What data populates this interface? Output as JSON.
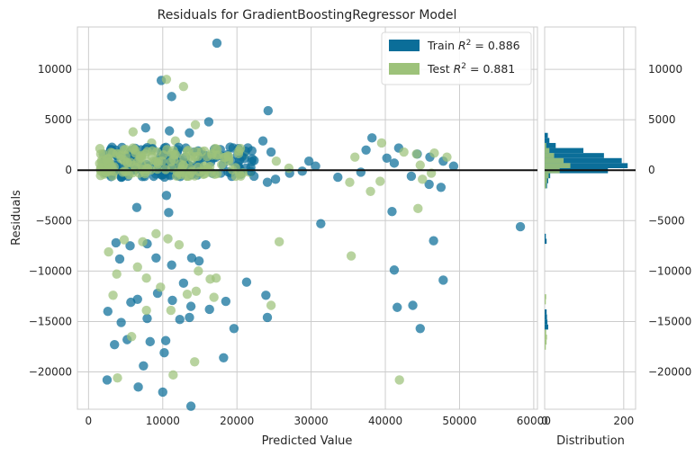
{
  "chart_data": {
    "type": "scatter",
    "title": "Residuals for GradientBoostingRegressor Model",
    "xlabel": "Predicted Value",
    "ylabel": "Residuals",
    "xlim": [
      -1500,
      60500
    ],
    "ylim": [
      -23700,
      14200
    ],
    "x_ticks": [
      0,
      10000,
      20000,
      30000,
      40000,
      50000,
      60000
    ],
    "y_ticks": [
      10000,
      5000,
      0,
      -5000,
      -10000,
      -15000,
      -20000
    ],
    "grid": true,
    "zero_line": 0,
    "legend": {
      "position": "top-right",
      "entries": [
        {
          "name": "Train R^2 = 0.886",
          "prefix": "Train ",
          "r2": "0.886",
          "color": "#0b6e99"
        },
        {
          "name": "Test R^2 = 0.881",
          "prefix": "Test ",
          "r2": "0.881",
          "color": "#9dc27a"
        }
      ]
    },
    "series": [
      {
        "name": "Train",
        "color": "#0b6e99",
        "points": [
          [
            17300,
            12600
          ],
          [
            9800,
            8900
          ],
          [
            11200,
            7300
          ],
          [
            24200,
            5900
          ],
          [
            16200,
            4800
          ],
          [
            7700,
            4200
          ],
          [
            10900,
            3900
          ],
          [
            13600,
            3700
          ],
          [
            24600,
            1800
          ],
          [
            29700,
            900
          ],
          [
            30600,
            400
          ],
          [
            23500,
            2900
          ],
          [
            38200,
            3200
          ],
          [
            44300,
            1600
          ],
          [
            46000,
            1300
          ],
          [
            47800,
            900
          ],
          [
            49200,
            400
          ],
          [
            41800,
            2200
          ],
          [
            37400,
            2000
          ],
          [
            40200,
            1200
          ],
          [
            41200,
            700
          ],
          [
            43500,
            -600
          ],
          [
            45900,
            -1400
          ],
          [
            47500,
            -1700
          ],
          [
            36700,
            -200
          ],
          [
            33600,
            -700
          ],
          [
            28800,
            -100
          ],
          [
            27100,
            -300
          ],
          [
            25200,
            -900
          ],
          [
            22300,
            -600
          ],
          [
            21200,
            200
          ],
          [
            24100,
            -1200
          ],
          [
            19300,
            900
          ],
          [
            40900,
            -4100
          ],
          [
            31300,
            -5300
          ],
          [
            58200,
            -5600
          ],
          [
            46500,
            -7000
          ],
          [
            43700,
            -13400
          ],
          [
            41200,
            -9900
          ],
          [
            41600,
            -13600
          ],
          [
            44700,
            -15700
          ],
          [
            47800,
            -10900
          ],
          [
            23900,
            -12400
          ],
          [
            24100,
            -14600
          ],
          [
            21300,
            -11100
          ],
          [
            18500,
            -13000
          ],
          [
            18200,
            -18600
          ],
          [
            19600,
            -15700
          ],
          [
            16300,
            -13800
          ],
          [
            13600,
            -14600
          ],
          [
            10400,
            -16900
          ],
          [
            10200,
            -18100
          ],
          [
            10000,
            -22000
          ],
          [
            6700,
            -21500
          ],
          [
            2500,
            -20800
          ],
          [
            7400,
            -19400
          ],
          [
            8300,
            -17000
          ],
          [
            5200,
            -16800
          ],
          [
            3500,
            -17300
          ],
          [
            4400,
            -15100
          ],
          [
            5700,
            -13100
          ],
          [
            6600,
            -12800
          ],
          [
            7900,
            -14700
          ],
          [
            9300,
            -12200
          ],
          [
            11300,
            -12900
          ],
          [
            12300,
            -14800
          ],
          [
            13800,
            -13500
          ],
          [
            12800,
            -11200
          ],
          [
            11200,
            -9400
          ],
          [
            9100,
            -8700
          ],
          [
            4200,
            -8800
          ],
          [
            3700,
            -7200
          ],
          [
            5600,
            -7500
          ],
          [
            7900,
            -7300
          ],
          [
            10800,
            -4200
          ],
          [
            10500,
            -2500
          ],
          [
            6500,
            -3700
          ],
          [
            13900,
            -8700
          ],
          [
            14900,
            -9000
          ],
          [
            15800,
            -7400
          ],
          [
            13800,
            -23400
          ],
          [
            2600,
            -14000
          ],
          [
            3100,
            -200
          ],
          [
            4100,
            300
          ],
          [
            5300,
            -600
          ],
          [
            6400,
            100
          ],
          [
            8200,
            400
          ]
        ]
      },
      {
        "name": "Test",
        "color": "#9dc27a",
        "points": [
          [
            10500,
            9000
          ],
          [
            12800,
            8300
          ],
          [
            14400,
            4500
          ],
          [
            6000,
            3800
          ],
          [
            8500,
            2700
          ],
          [
            11700,
            2900
          ],
          [
            15600,
            1900
          ],
          [
            18900,
            1100
          ],
          [
            20900,
            1500
          ],
          [
            25300,
            900
          ],
          [
            27000,
            200
          ],
          [
            35900,
            1300
          ],
          [
            39500,
            2700
          ],
          [
            42500,
            1800
          ],
          [
            44200,
            1600
          ],
          [
            46600,
            1700
          ],
          [
            48300,
            1300
          ],
          [
            44700,
            500
          ],
          [
            46200,
            -300
          ],
          [
            38000,
            -2100
          ],
          [
            35200,
            -1200
          ],
          [
            39300,
            -1100
          ],
          [
            45000,
            -900
          ],
          [
            44400,
            -3800
          ],
          [
            25700,
            -7100
          ],
          [
            35400,
            -8500
          ],
          [
            41900,
            -20800
          ],
          [
            24600,
            -13400
          ],
          [
            16400,
            -10800
          ],
          [
            17200,
            -10700
          ],
          [
            16900,
            -12600
          ],
          [
            14800,
            -10000
          ],
          [
            14500,
            -12000
          ],
          [
            13300,
            -12300
          ],
          [
            12200,
            -7400
          ],
          [
            10700,
            -6800
          ],
          [
            9100,
            -6300
          ],
          [
            7300,
            -7100
          ],
          [
            4800,
            -6900
          ],
          [
            2700,
            -8100
          ],
          [
            3800,
            -10300
          ],
          [
            6600,
            -9600
          ],
          [
            7800,
            -10700
          ],
          [
            9700,
            -11600
          ],
          [
            11100,
            -13900
          ],
          [
            14300,
            -19000
          ],
          [
            11400,
            -20300
          ],
          [
            7800,
            -13900
          ],
          [
            5800,
            -16500
          ],
          [
            3900,
            -20600
          ],
          [
            3300,
            -12400
          ],
          [
            2100,
            -400
          ],
          [
            5000,
            600
          ],
          [
            7100,
            1400
          ],
          [
            9500,
            300
          ],
          [
            13300,
            -600
          ],
          [
            15200,
            700
          ],
          [
            21700,
            -200
          ]
        ]
      }
    ],
    "distribution": {
      "xlabel": "Distribution",
      "x_ticks": [
        0,
        200
      ],
      "xlim": [
        0,
        230
      ],
      "bin_edges": [
        -17800,
        -17300,
        -16800,
        -16300,
        -15800,
        -15300,
        -14800,
        -14300,
        -13800,
        -13300,
        -12800,
        -12300,
        -11800,
        -11300,
        -10800,
        -10300,
        -9800,
        -9300,
        -8800,
        -8300,
        -7800,
        -7300,
        -6800,
        -6300,
        -5800,
        -5300,
        -4800,
        -4300,
        -3800,
        -3300,
        -2800,
        -2300,
        -1800,
        -1300,
        -800,
        -300,
        200,
        700,
        1200,
        1700,
        2200,
        2700,
        3200,
        3700
      ],
      "train_counts": [
        0,
        0,
        0,
        0,
        9,
        7,
        6,
        5,
        0,
        0,
        0,
        0,
        0,
        0,
        0,
        0,
        0,
        0,
        0,
        0,
        0,
        5,
        3,
        0,
        0,
        0,
        0,
        0,
        0,
        0,
        0,
        0,
        6,
        9,
        14,
        160,
        210,
        195,
        150,
        98,
        28,
        12,
        8
      ],
      "test_counts": [
        3,
        5,
        6,
        4,
        0,
        0,
        0,
        0,
        0,
        3,
        4,
        0,
        0,
        0,
        0,
        0,
        0,
        0,
        0,
        0,
        0,
        0,
        0,
        0,
        0,
        0,
        0,
        0,
        0,
        0,
        0,
        0,
        4,
        6,
        10,
        38,
        65,
        48,
        24,
        12,
        4,
        0,
        0
      ]
    }
  }
}
